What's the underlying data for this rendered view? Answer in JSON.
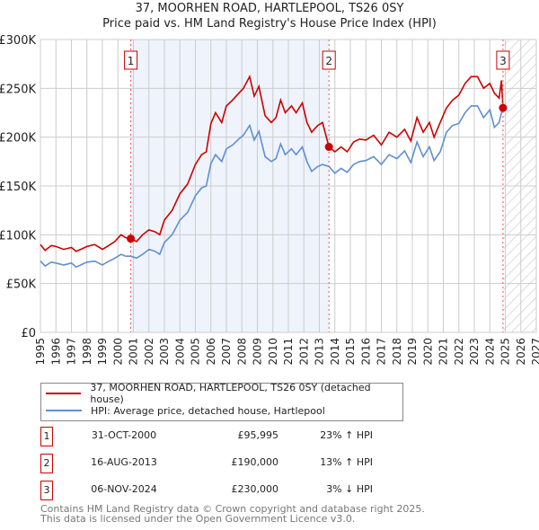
{
  "title": "37, MOORHEN ROAD, HARTLEPOOL, TS26 0SY",
  "subtitle": "Price paid vs. HM Land Registry's House Price Index (HPI)",
  "chart_data": {
    "type": "line",
    "title": "37, MOORHEN ROAD, HARTLEPOOL, TS26 0SY",
    "xlim": [
      1995,
      2027
    ],
    "ylim": [
      0,
      300000
    ],
    "x_ticks": [
      "1995",
      "1996",
      "1997",
      "1998",
      "1999",
      "2000",
      "2001",
      "2002",
      "2003",
      "2004",
      "2005",
      "2006",
      "2007",
      "2008",
      "2009",
      "2010",
      "2011",
      "2012",
      "2013",
      "2014",
      "2015",
      "2016",
      "2017",
      "2018",
      "2019",
      "2020",
      "2021",
      "2022",
      "2023",
      "2024",
      "2025",
      "2026",
      "2027"
    ],
    "y_ticks": [
      {
        "v": 0,
        "label": "£0"
      },
      {
        "v": 50000,
        "label": "£50K"
      },
      {
        "v": 100000,
        "label": "£100K"
      },
      {
        "v": 150000,
        "label": "£150K"
      },
      {
        "v": 200000,
        "label": "£200K"
      },
      {
        "v": 250000,
        "label": "£250K"
      },
      {
        "v": 300000,
        "label": "£300K"
      }
    ],
    "shaded_range": [
      2000.83,
      2013.62
    ],
    "future_hatch_from": 2024.85,
    "series": [
      {
        "name": "37, MOORHEN ROAD, HARTLEPOOL, TS26 0SY (detached house)",
        "color": "#cc0000",
        "x": [
          1995,
          1995.3,
          1995.7,
          1996,
          1996.5,
          1997,
          1997.3,
          1997.6,
          1998,
          1998.5,
          1999,
          1999.3,
          1999.8,
          2000.2,
          2000.5,
          2000.83,
          2001.2,
          2001.6,
          2002,
          2002.4,
          2002.7,
          2003,
          2003.5,
          2004,
          2004.5,
          2005,
          2005.4,
          2005.7,
          2006,
          2006.3,
          2006.7,
          2007,
          2007.4,
          2007.8,
          2008.1,
          2008.5,
          2008.8,
          2009.1,
          2009.5,
          2009.9,
          2010.2,
          2010.5,
          2010.8,
          2011.2,
          2011.5,
          2011.9,
          2012.2,
          2012.5,
          2012.9,
          2013.2,
          2013.62,
          2014,
          2014.4,
          2014.8,
          2015.2,
          2015.6,
          2016,
          2016.5,
          2017,
          2017.5,
          2018,
          2018.5,
          2018.9,
          2019.3,
          2019.7,
          2020.1,
          2020.4,
          2020.8,
          2021.2,
          2021.6,
          2022,
          2022.4,
          2022.8,
          2023.2,
          2023.6,
          2024,
          2024.3,
          2024.6,
          2024.75,
          2024.85
        ],
        "y": [
          90000,
          84000,
          89000,
          88000,
          85000,
          87000,
          83000,
          85000,
          88000,
          90000,
          85000,
          88000,
          93000,
          100000,
          97000,
          95995,
          93000,
          100000,
          105000,
          103000,
          100000,
          115000,
          125000,
          142000,
          152000,
          172000,
          182000,
          185000,
          214000,
          225000,
          215000,
          232000,
          238000,
          245000,
          250000,
          262000,
          242000,
          252000,
          222000,
          215000,
          220000,
          238000,
          225000,
          232000,
          225000,
          235000,
          215000,
          205000,
          212000,
          215000,
          190000,
          185000,
          190000,
          185000,
          195000,
          198000,
          197000,
          202000,
          192000,
          205000,
          200000,
          208000,
          196000,
          220000,
          205000,
          215000,
          200000,
          215000,
          230000,
          238000,
          243000,
          255000,
          262000,
          262000,
          250000,
          255000,
          245000,
          240000,
          258000,
          230000
        ],
        "markers": [
          {
            "x": 2000.83,
            "y": 95995,
            "label": "1"
          },
          {
            "x": 2013.62,
            "y": 190000,
            "label": "2"
          },
          {
            "x": 2024.85,
            "y": 230000,
            "label": "3"
          }
        ]
      },
      {
        "name": "HPI: Average price, detached house, Hartlepool",
        "color": "#5f8fd0",
        "x": [
          1995,
          1995.3,
          1995.7,
          1996,
          1996.5,
          1997,
          1997.3,
          1997.6,
          1998,
          1998.5,
          1999,
          1999.3,
          1999.8,
          2000.2,
          2000.5,
          2000.83,
          2001.2,
          2001.6,
          2002,
          2002.4,
          2002.7,
          2003,
          2003.5,
          2004,
          2004.5,
          2005,
          2005.4,
          2005.7,
          2006,
          2006.3,
          2006.7,
          2007,
          2007.4,
          2007.8,
          2008.1,
          2008.5,
          2008.8,
          2009.1,
          2009.5,
          2009.9,
          2010.2,
          2010.5,
          2010.8,
          2011.2,
          2011.5,
          2011.9,
          2012.2,
          2012.5,
          2012.9,
          2013.2,
          2013.62,
          2014,
          2014.4,
          2014.8,
          2015.2,
          2015.6,
          2016,
          2016.5,
          2017,
          2017.5,
          2018,
          2018.5,
          2018.9,
          2019.3,
          2019.7,
          2020.1,
          2020.4,
          2020.8,
          2021.2,
          2021.6,
          2022,
          2022.4,
          2022.8,
          2023.2,
          2023.6,
          2024,
          2024.3,
          2024.6,
          2024.75,
          2024.85
        ],
        "y": [
          73000,
          68000,
          72000,
          71000,
          69000,
          71000,
          67000,
          69000,
          72000,
          73000,
          69000,
          72000,
          76000,
          80000,
          78000,
          78000,
          76000,
          80000,
          85000,
          83000,
          80000,
          92000,
          100000,
          115000,
          123000,
          140000,
          148000,
          150000,
          173000,
          182000,
          175000,
          188000,
          192000,
          198000,
          202000,
          212000,
          197000,
          206000,
          180000,
          175000,
          178000,
          193000,
          182000,
          188000,
          182000,
          190000,
          175000,
          165000,
          170000,
          172000,
          170000,
          163000,
          168000,
          164000,
          172000,
          175000,
          176000,
          180000,
          172000,
          182000,
          178000,
          186000,
          174000,
          195000,
          180000,
          190000,
          176000,
          185000,
          205000,
          212000,
          214000,
          225000,
          232000,
          232000,
          220000,
          228000,
          210000,
          215000,
          225000,
          236000
        ]
      }
    ]
  },
  "legend": {
    "items": [
      "37, MOORHEN ROAD, HARTLEPOOL, TS26 0SY (detached house)",
      "HPI: Average price, detached house, Hartlepool"
    ]
  },
  "transactions": [
    {
      "num": "1",
      "date": "31-OCT-2000",
      "price": "£95,995",
      "hpi": "23% ↑ HPI"
    },
    {
      "num": "2",
      "date": "16-AUG-2013",
      "price": "£190,000",
      "hpi": "13% ↑ HPI"
    },
    {
      "num": "3",
      "date": "06-NOV-2024",
      "price": "£230,000",
      "hpi": "3% ↓ HPI"
    }
  ],
  "footer": {
    "line1": "Contains HM Land Registry data © Crown copyright and database right 2025.",
    "line2": "This data is licensed under the Open Government Licence v3.0."
  }
}
